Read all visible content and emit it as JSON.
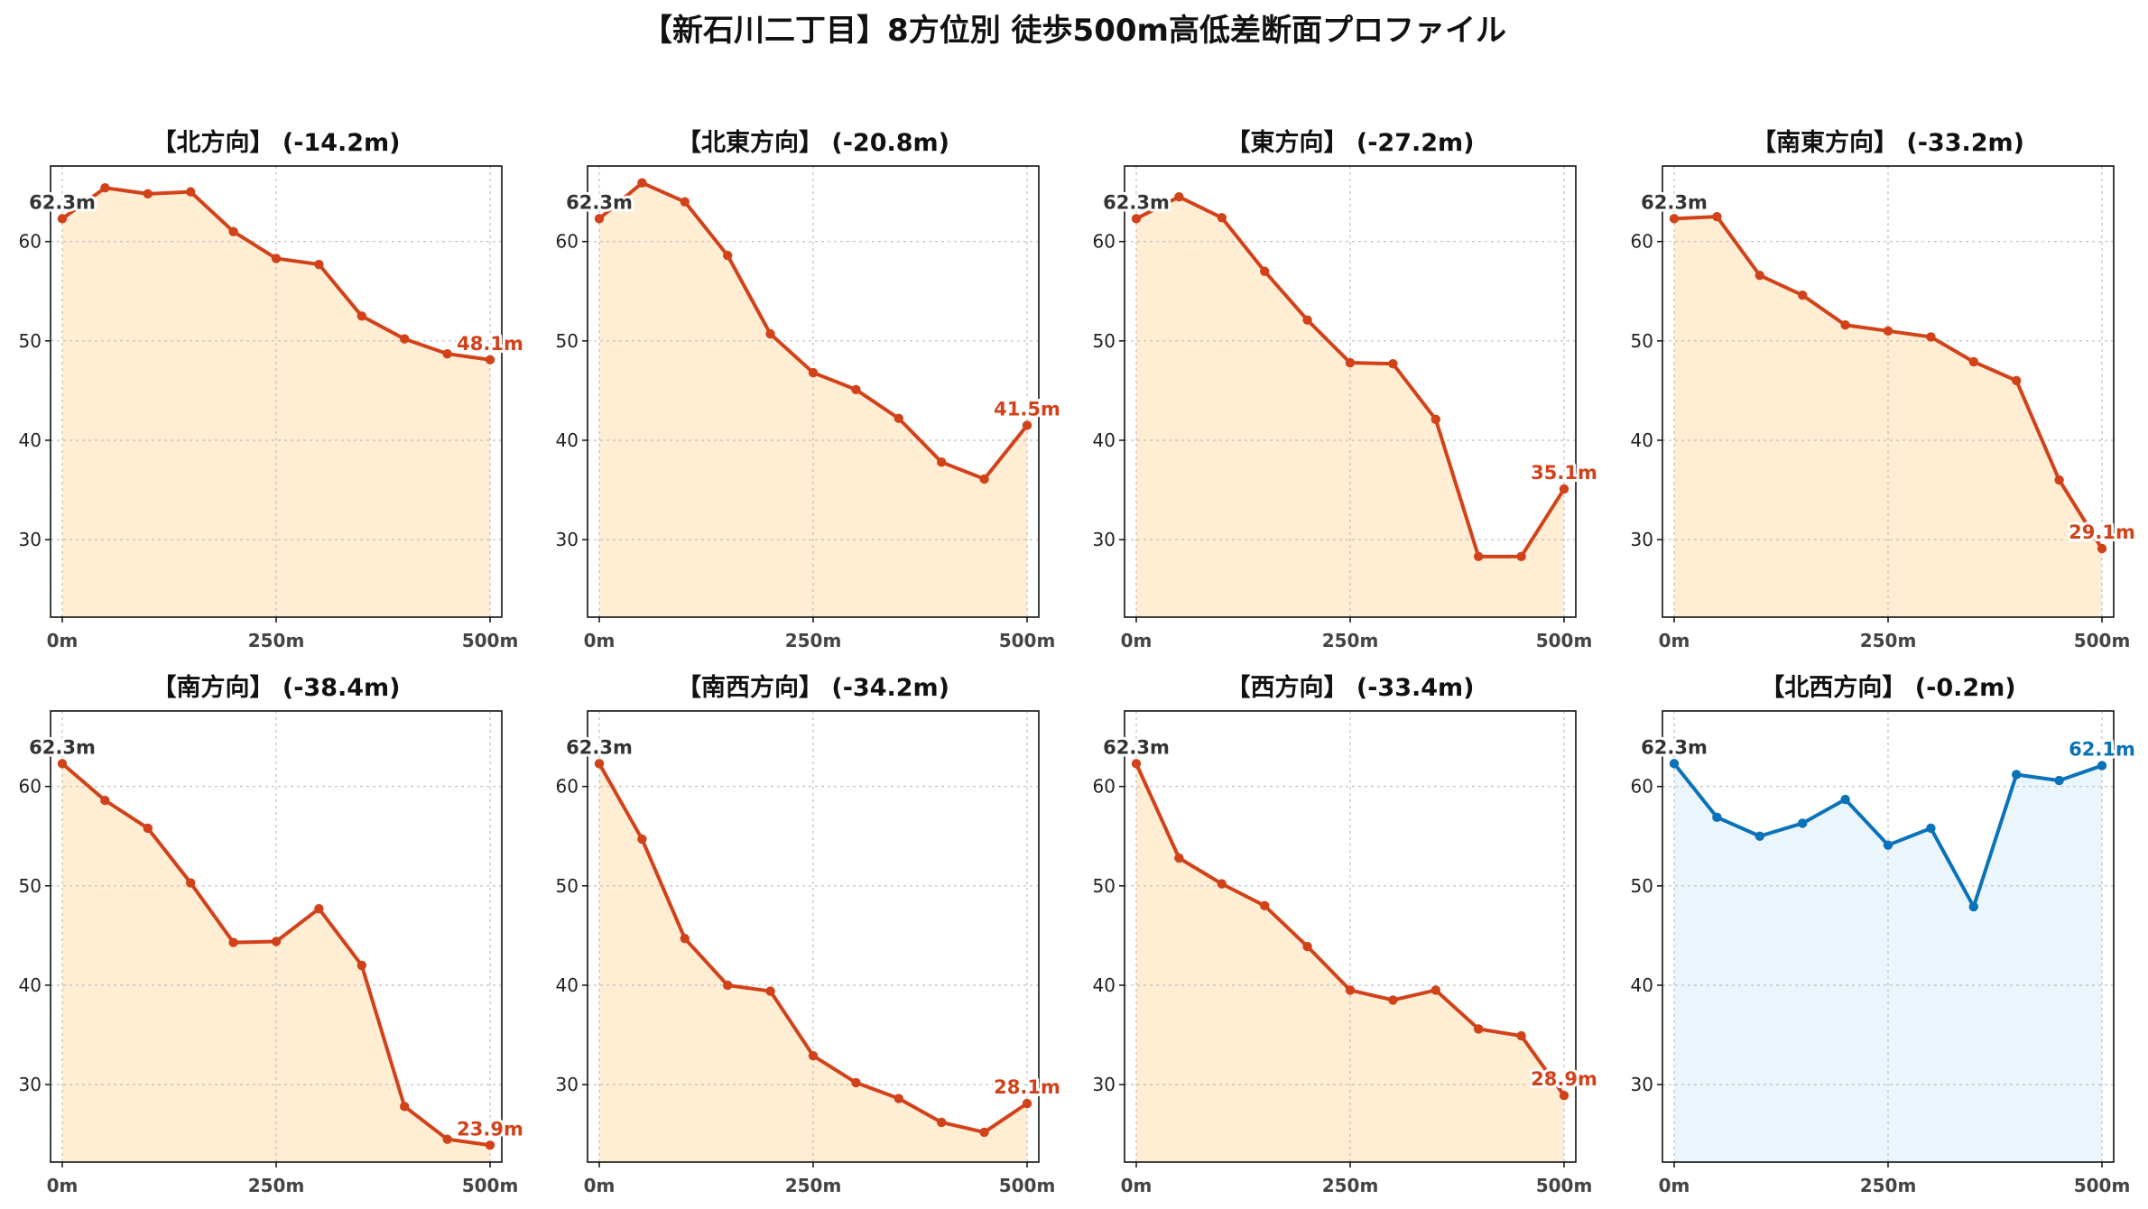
{
  "title": "【新石川二丁目】8方位別 徒歩500m高低差断面プロファイル",
  "colors": {
    "descent": "#d2421a",
    "descent_fill": "#ffeed4",
    "flat": "#0a72b8",
    "flat_fill": "#eaf6fc"
  },
  "chart_data": [
    {
      "type": "area",
      "title": "【北方向】 (-14.2m)",
      "x": [
        0,
        50,
        100,
        150,
        200,
        250,
        300,
        350,
        400,
        450,
        500
      ],
      "values": [
        62.3,
        65.4,
        64.8,
        65.0,
        61.0,
        58.3,
        57.7,
        52.5,
        50.2,
        48.7,
        48.1
      ],
      "start_label": "62.3m",
      "end_label": "48.1m",
      "xticks": [
        "0m",
        "250m",
        "500m"
      ],
      "yticks": [
        30,
        40,
        50,
        60
      ],
      "ylim": [
        22.2,
        67.6
      ],
      "grid": true,
      "color": "descent"
    },
    {
      "type": "area",
      "title": "【北東方向】 (-20.8m)",
      "x": [
        0,
        50,
        100,
        150,
        200,
        250,
        300,
        350,
        400,
        450,
        500
      ],
      "values": [
        62.3,
        65.9,
        64.0,
        58.6,
        50.7,
        46.8,
        45.1,
        42.2,
        37.8,
        36.1,
        41.5
      ],
      "start_label": "62.3m",
      "end_label": "41.5m",
      "xticks": [
        "0m",
        "250m",
        "500m"
      ],
      "yticks": [
        30,
        40,
        50,
        60
      ],
      "ylim": [
        22.2,
        67.6
      ],
      "grid": true,
      "color": "descent"
    },
    {
      "type": "area",
      "title": "【東方向】 (-27.2m)",
      "x": [
        0,
        50,
        100,
        150,
        200,
        250,
        300,
        350,
        400,
        450,
        500
      ],
      "values": [
        62.3,
        64.5,
        62.4,
        57.0,
        52.1,
        47.8,
        47.7,
        42.1,
        28.3,
        28.3,
        35.1
      ],
      "start_label": "62.3m",
      "end_label": "35.1m",
      "xticks": [
        "0m",
        "250m",
        "500m"
      ],
      "yticks": [
        30,
        40,
        50,
        60
      ],
      "ylim": [
        22.2,
        67.6
      ],
      "grid": true,
      "color": "descent"
    },
    {
      "type": "area",
      "title": "【南東方向】 (-33.2m)",
      "x": [
        0,
        50,
        100,
        150,
        200,
        250,
        300,
        350,
        400,
        450,
        500
      ],
      "values": [
        62.3,
        62.5,
        56.6,
        54.6,
        51.6,
        51.0,
        50.4,
        47.9,
        46.0,
        36.0,
        29.1
      ],
      "start_label": "62.3m",
      "end_label": "29.1m",
      "xticks": [
        "0m",
        "250m",
        "500m"
      ],
      "yticks": [
        30,
        40,
        50,
        60
      ],
      "ylim": [
        22.2,
        67.6
      ],
      "grid": true,
      "color": "descent"
    },
    {
      "type": "area",
      "title": "【南方向】 (-38.4m)",
      "x": [
        0,
        50,
        100,
        150,
        200,
        250,
        300,
        350,
        400,
        450,
        500
      ],
      "values": [
        62.3,
        58.6,
        55.8,
        50.3,
        44.3,
        44.4,
        47.7,
        42.0,
        27.8,
        24.5,
        23.9
      ],
      "start_label": "62.3m",
      "end_label": "23.9m",
      "xticks": [
        "0m",
        "250m",
        "500m"
      ],
      "yticks": [
        30,
        40,
        50,
        60
      ],
      "ylim": [
        22.2,
        67.6
      ],
      "grid": true,
      "color": "descent"
    },
    {
      "type": "area",
      "title": "【南西方向】 (-34.2m)",
      "x": [
        0,
        50,
        100,
        150,
        200,
        250,
        300,
        350,
        400,
        450,
        500
      ],
      "values": [
        62.3,
        54.7,
        44.7,
        40.0,
        39.4,
        32.9,
        30.2,
        28.6,
        26.2,
        25.2,
        28.1
      ],
      "start_label": "62.3m",
      "end_label": "28.1m",
      "xticks": [
        "0m",
        "250m",
        "500m"
      ],
      "yticks": [
        30,
        40,
        50,
        60
      ],
      "ylim": [
        22.2,
        67.6
      ],
      "grid": true,
      "color": "descent"
    },
    {
      "type": "area",
      "title": "【西方向】 (-33.4m)",
      "x": [
        0,
        50,
        100,
        150,
        200,
        250,
        300,
        350,
        400,
        450,
        500
      ],
      "values": [
        62.3,
        52.8,
        50.2,
        48.0,
        43.9,
        39.5,
        38.5,
        39.5,
        35.6,
        34.9,
        28.9
      ],
      "start_label": "62.3m",
      "end_label": "28.9m",
      "xticks": [
        "0m",
        "250m",
        "500m"
      ],
      "yticks": [
        30,
        40,
        50,
        60
      ],
      "ylim": [
        22.2,
        67.6
      ],
      "grid": true,
      "color": "descent"
    },
    {
      "type": "area",
      "title": "【北西方向】 (-0.2m)",
      "x": [
        0,
        50,
        100,
        150,
        200,
        250,
        300,
        350,
        400,
        450,
        500
      ],
      "values": [
        62.3,
        56.9,
        55.0,
        56.3,
        58.7,
        54.1,
        55.8,
        47.9,
        61.2,
        60.6,
        62.1
      ],
      "start_label": "62.3m",
      "end_label": "62.1m",
      "xticks": [
        "0m",
        "250m",
        "500m"
      ],
      "yticks": [
        30,
        40,
        50,
        60
      ],
      "ylim": [
        22.2,
        67.6
      ],
      "grid": true,
      "color": "flat"
    }
  ]
}
